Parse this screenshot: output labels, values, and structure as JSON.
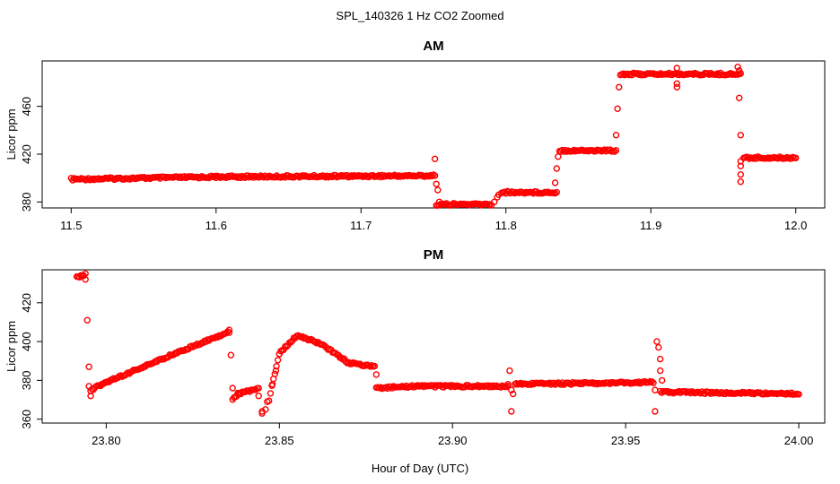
{
  "figure": {
    "title": "SPL_140326  1 Hz CO2 Zoomed",
    "xlabel": "Hour of Day (UTC)"
  },
  "style": {
    "point_color": "#ff0000"
  },
  "chart_data": [
    {
      "type": "scatter",
      "title": "AM",
      "ylabel": "Licor ppm",
      "xlim": [
        11.48,
        12.02
      ],
      "ylim": [
        375,
        498
      ],
      "xticks": [
        "11.5",
        "11.6",
        "11.7",
        "11.8",
        "11.9",
        "12.0"
      ],
      "yticks": [
        "380",
        "420",
        "460"
      ],
      "segments": [
        [
          11.5,
          399,
          11.6,
          401
        ],
        [
          11.6,
          401,
          11.75,
          402
        ],
        [
          11.752,
          378,
          11.79,
          378
        ],
        [
          11.797,
          388,
          11.835,
          388
        ],
        [
          11.837,
          423,
          11.876,
          423
        ],
        [
          11.879,
          487,
          11.962,
          487
        ],
        [
          11.964,
          417,
          12.0,
          417
        ]
      ],
      "points": [
        [
          11.751,
          416
        ],
        [
          11.751,
          402
        ],
        [
          11.752,
          395
        ],
        [
          11.753,
          390
        ],
        [
          11.754,
          380
        ],
        [
          11.792,
          380
        ],
        [
          11.794,
          384
        ],
        [
          11.795,
          386
        ],
        [
          11.834,
          396
        ],
        [
          11.835,
          408
        ],
        [
          11.836,
          418
        ],
        [
          11.876,
          436
        ],
        [
          11.877,
          458
        ],
        [
          11.878,
          476
        ],
        [
          11.918,
          492
        ],
        [
          11.918,
          479
        ],
        [
          11.918,
          476
        ],
        [
          11.96,
          493
        ],
        [
          11.961,
          490
        ],
        [
          11.961,
          467
        ],
        [
          11.962,
          436
        ],
        [
          11.962,
          414
        ],
        [
          11.962,
          410
        ],
        [
          11.962,
          403
        ],
        [
          11.962,
          397
        ]
      ]
    },
    {
      "type": "scatter",
      "title": "PM",
      "ylabel": "Licor ppm",
      "xlim": [
        23.7815,
        24.0075
      ],
      "ylim": [
        358,
        437
      ],
      "xticks": [
        "23.80",
        "23.85",
        "23.90",
        "23.95",
        "24.00"
      ],
      "yticks": [
        "360",
        "380",
        "400",
        "420"
      ],
      "segments": [
        [
          23.7915,
          433,
          23.7935,
          434
        ],
        [
          23.7955,
          375,
          23.8,
          379
        ],
        [
          23.8,
          379,
          23.82,
          394
        ],
        [
          23.82,
          394,
          23.8355,
          405
        ],
        [
          23.8365,
          370,
          23.838,
          373
        ],
        [
          23.838,
          373,
          23.844,
          376
        ],
        [
          23.847,
          370,
          23.85,
          394
        ],
        [
          23.85,
          394,
          23.855,
          403
        ],
        [
          23.855,
          403,
          23.862,
          399
        ],
        [
          23.862,
          399,
          23.87,
          389
        ],
        [
          23.87,
          389,
          23.8775,
          387
        ],
        [
          23.878,
          376,
          23.89,
          377
        ],
        [
          23.89,
          377,
          23.916,
          377
        ],
        [
          23.918,
          378,
          23.958,
          379
        ],
        [
          23.96,
          374,
          24.0,
          373
        ]
      ],
      "points": [
        [
          23.794,
          435
        ],
        [
          23.794,
          432
        ],
        [
          23.7945,
          411
        ],
        [
          23.795,
          387
        ],
        [
          23.795,
          377
        ],
        [
          23.7955,
          372
        ],
        [
          23.8355,
          406
        ],
        [
          23.836,
          393
        ],
        [
          23.8365,
          376
        ],
        [
          23.844,
          372
        ],
        [
          23.845,
          364
        ],
        [
          23.845,
          363
        ],
        [
          23.846,
          365
        ],
        [
          23.8465,
          369
        ],
        [
          23.848,
          378
        ],
        [
          23.849,
          385
        ],
        [
          23.878,
          383
        ],
        [
          23.916,
          378
        ],
        [
          23.9165,
          385
        ],
        [
          23.917,
          375
        ],
        [
          23.9175,
          373
        ],
        [
          23.917,
          364
        ],
        [
          23.9585,
          364
        ],
        [
          23.9585,
          375
        ],
        [
          23.959,
          400
        ],
        [
          23.9595,
          397
        ],
        [
          23.96,
          391
        ],
        [
          23.96,
          385
        ],
        [
          23.9605,
          380
        ]
      ]
    }
  ]
}
